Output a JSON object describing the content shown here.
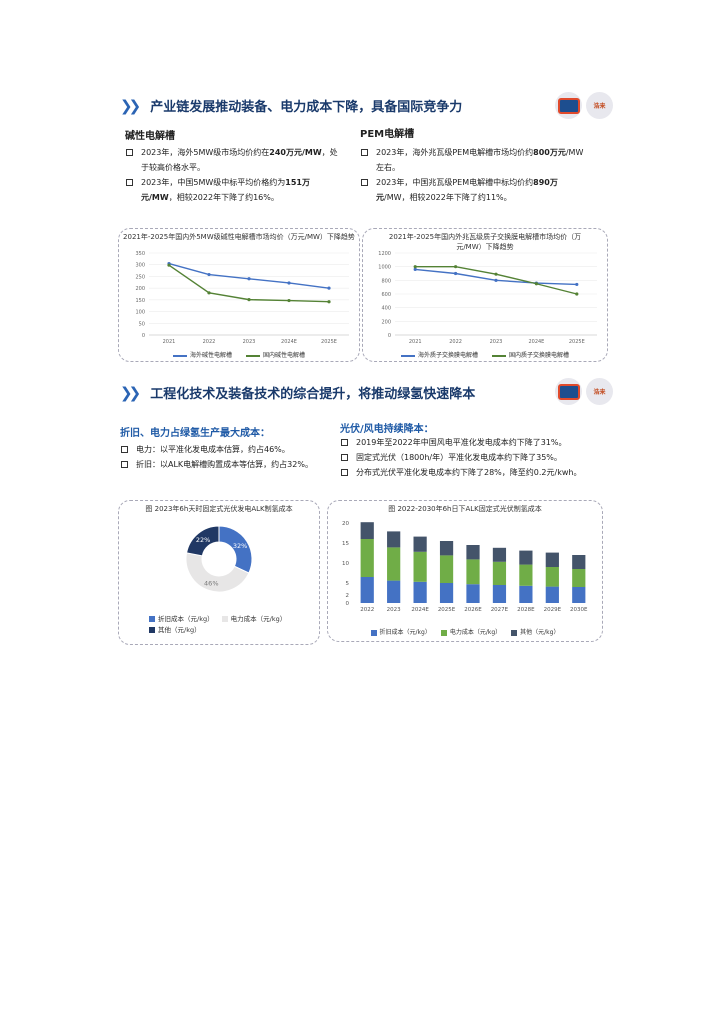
{
  "section1": {
    "title": "产业链发展推动装备、电力成本下降，具备国际竞争力",
    "left_heading": "碱性电解槽",
    "left_bullets": [
      {
        "pre": "2023年，海外5MW级市场均价约在",
        "bold": "240万元/MW",
        "post": "，处于较高价格水平。"
      },
      {
        "pre": "2023年，中国5MW级中标平均价格约为",
        "bold": "151万元/MW",
        "post": "，相较2022年下降了约16%。"
      }
    ],
    "right_heading": "PEM电解槽",
    "right_bullets": [
      {
        "pre": "2023年，海外兆瓦级PEM电解槽市场均价约",
        "bold": "800万元",
        "post": "/MW左右。"
      },
      {
        "pre": "2023年，中国兆瓦级PEM电解槽中标均价约",
        "bold": "890万元",
        "post": "/MW，相较2022年下降了约11%。"
      }
    ]
  },
  "section2": {
    "title": "工程化技术及装备技术的综合提升，将推动绿氢快速降本",
    "left_heading": "折旧、电力占绿氢生产最大成本：",
    "left_bullets": [
      {
        "pre": "电力：以平准化发电成本估算，约占46%。",
        "bold": "",
        "post": ""
      },
      {
        "pre": "折旧：以ALK电解槽购置成本等估算，约占32%。",
        "bold": "",
        "post": ""
      }
    ],
    "right_heading": "光伏/风电持续降本：",
    "right_bullets": [
      {
        "pre": "2019年至2022年中国风电平准化发电成本约下降了31%。",
        "bold": "",
        "post": ""
      },
      {
        "pre": "固定式光伏（1800h/年）平准化发电成本约下降了35%。",
        "bold": "",
        "post": ""
      },
      {
        "pre": "分布式光伏平准化发电成本约下降了28%，降至约0.2元/kwh。",
        "bold": "",
        "post": ""
      }
    ]
  },
  "logos": {
    "text_b": "浩来"
  },
  "chart_data": [
    {
      "type": "line",
      "title": "2021年-2025年国内外5MW级碱性电解槽市场均价（万元/MW）下降趋势",
      "x": [
        "2021",
        "2022",
        "2023",
        "2024E",
        "2025E"
      ],
      "ylim": [
        0,
        350
      ],
      "yticks": [
        "0",
        "50",
        "100",
        "150",
        "200",
        "250",
        "300",
        "350"
      ],
      "series": [
        {
          "name": "海外碱性电解槽",
          "values": [
            305,
            258,
            240,
            222,
            200
          ],
          "color": "#4472c4"
        },
        {
          "name": "国内碱性电解槽",
          "values": [
            298,
            180,
            151,
            147,
            142
          ],
          "color": "#548235"
        }
      ]
    },
    {
      "type": "line",
      "title": "2021年-2025年国内外兆瓦级质子交换膜电解槽市场均价（万元/MW）下降趋势",
      "x": [
        "2021",
        "2022",
        "2023",
        "2024E",
        "2025E"
      ],
      "ylim": [
        0,
        1200
      ],
      "yticks": [
        "0",
        "200",
        "400",
        "600",
        "800",
        "1000",
        "1200"
      ],
      "series": [
        {
          "name": "海外质子交换膜电解槽",
          "values": [
            960,
            900,
            800,
            760,
            740
          ],
          "color": "#4472c4"
        },
        {
          "name": "国内质子交换膜电解槽",
          "values": [
            1000,
            1000,
            890,
            750,
            600
          ],
          "color": "#548235"
        }
      ]
    },
    {
      "type": "pie",
      "title": "图 2023年6h天时固定式光伏发电ALK制氢成本",
      "slices": [
        {
          "name": "折旧成本（元/kg）",
          "value": 32,
          "label": "32%",
          "color": "#4472c4"
        },
        {
          "name": "电力成本（元/kg）",
          "value": 46,
          "label": "46%",
          "color": "#e7e6e6"
        },
        {
          "name": "其他（元/kg）",
          "value": 22,
          "label": "22%",
          "color": "#203864"
        }
      ]
    },
    {
      "type": "bar",
      "title": "图 2022-2030年6h日下ALK固定式光伏制氢成本",
      "categories": [
        "2022",
        "2023",
        "2024E",
        "2025E",
        "2026E",
        "2027E",
        "2028E",
        "2029E",
        "2030E"
      ],
      "ylim": [
        0,
        20
      ],
      "yticks": [
        "0",
        "2",
        "5",
        "10",
        "15",
        "20"
      ],
      "series": [
        {
          "name": "折旧成本（元/kg）",
          "values": [
            6.5,
            5.6,
            5.3,
            5.0,
            4.7,
            4.5,
            4.3,
            4.1,
            4.0
          ],
          "color": "#4472c4"
        },
        {
          "name": "电力成本（元/kg）",
          "values": [
            9.5,
            8.3,
            7.5,
            6.9,
            6.2,
            5.8,
            5.3,
            4.9,
            4.5
          ],
          "color": "#70ad47"
        },
        {
          "name": "其他（元/kg）",
          "values": [
            4.2,
            4.0,
            3.8,
            3.6,
            3.6,
            3.5,
            3.5,
            3.6,
            3.5
          ],
          "color": "#44546a"
        }
      ]
    }
  ]
}
